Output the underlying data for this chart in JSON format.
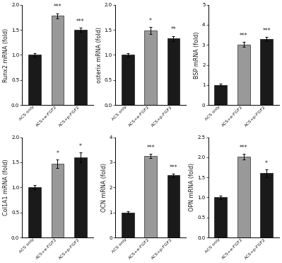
{
  "subplots": [
    {
      "ylabel": "Runx2 mRNA (fold)",
      "ylim": [
        0,
        2
      ],
      "yticks": [
        0,
        0.5,
        1,
        1.5,
        2
      ],
      "values": [
        1.0,
        1.78,
        1.5
      ],
      "errors": [
        0.03,
        0.05,
        0.04
      ],
      "stars": [
        "",
        "***",
        "***"
      ],
      "colors": [
        "#1a1a1a",
        "#999999",
        "#1a1a1a"
      ]
    },
    {
      "ylabel": "osterix mRNA (fold)",
      "ylim": [
        0,
        2
      ],
      "yticks": [
        0,
        0.5,
        1,
        1.5,
        2
      ],
      "values": [
        1.0,
        1.48,
        1.33
      ],
      "errors": [
        0.03,
        0.07,
        0.05
      ],
      "stars": [
        "",
        "*",
        "**"
      ],
      "colors": [
        "#1a1a1a",
        "#999999",
        "#1a1a1a"
      ]
    },
    {
      "ylabel": "BSP mRNA (fold)",
      "ylim": [
        0,
        5
      ],
      "yticks": [
        0,
        1,
        2,
        3,
        4,
        5
      ],
      "values": [
        1.0,
        3.02,
        3.3
      ],
      "errors": [
        0.05,
        0.12,
        0.1
      ],
      "stars": [
        "",
        "***",
        "***"
      ],
      "colors": [
        "#1a1a1a",
        "#999999",
        "#1a1a1a"
      ]
    },
    {
      "ylabel": "Col1A1 mRNA (fold)",
      "ylim": [
        0,
        2
      ],
      "yticks": [
        0,
        0.5,
        1,
        1.5,
        2
      ],
      "values": [
        1.0,
        1.47,
        1.6
      ],
      "errors": [
        0.04,
        0.08,
        0.1
      ],
      "stars": [
        "",
        "*",
        "*"
      ],
      "colors": [
        "#1a1a1a",
        "#999999",
        "#1a1a1a"
      ]
    },
    {
      "ylabel": "OCN mRNA (fold)",
      "ylim": [
        0,
        4
      ],
      "yticks": [
        0,
        1,
        2,
        3,
        4
      ],
      "values": [
        1.0,
        3.25,
        2.48
      ],
      "errors": [
        0.04,
        0.08,
        0.07
      ],
      "stars": [
        "",
        "***",
        "***"
      ],
      "colors": [
        "#1a1a1a",
        "#999999",
        "#1a1a1a"
      ]
    },
    {
      "ylabel": "OPN mRNA (fold)",
      "ylim": [
        0,
        2.5
      ],
      "yticks": [
        0,
        0.5,
        1,
        1.5,
        2,
        2.5
      ],
      "values": [
        1.0,
        2.02,
        1.6
      ],
      "errors": [
        0.04,
        0.07,
        0.1
      ],
      "stars": [
        "",
        "***",
        "*"
      ],
      "colors": [
        "#1a1a1a",
        "#999999",
        "#1a1a1a"
      ]
    }
  ],
  "xtick_labels": [
    "ACS only",
    "ACS+e-FGF2",
    "ACS+p-FGF2"
  ],
  "bar_width": 0.55,
  "background_color": "#ffffff",
  "text_color": "#1a1a1a",
  "star_fontsize": 5.5,
  "ylabel_fontsize": 5.8,
  "ytick_fontsize": 5.0,
  "xtick_fontsize": 4.5
}
